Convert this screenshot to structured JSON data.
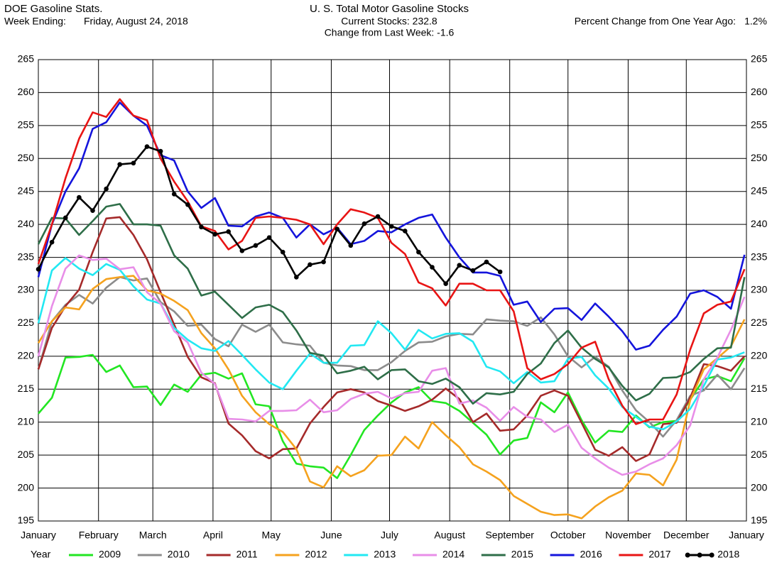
{
  "header": {
    "left_title": "DOE Gasoline Stats.",
    "week_label": "Week Ending:",
    "week_value": "Friday, August 24, 2018",
    "pct_label": "Percent Change from One Year Ago:",
    "pct_value": "1.2%"
  },
  "chart_data": {
    "type": "line",
    "title": "U. S. Total Motor Gasoline Stocks",
    "subtitle": [
      "Current Stocks: 232.8",
      "Change from Last Week: -1.6"
    ],
    "legend_title": "Year",
    "grid": true,
    "x": [
      0,
      1,
      2,
      3,
      4,
      5,
      6,
      7,
      8,
      9,
      10,
      11,
      12,
      13,
      14,
      15,
      16,
      17,
      18,
      19,
      20,
      21,
      22,
      23,
      24,
      25,
      26,
      27,
      28,
      29,
      30,
      31,
      32,
      33,
      34,
      35,
      36,
      37,
      38,
      39,
      40,
      41,
      42,
      43,
      44,
      45,
      46,
      47,
      48,
      49,
      50,
      51,
      52
    ],
    "xlim": [
      0,
      52.14
    ],
    "xticks": [
      {
        "value": 0,
        "label": "January"
      },
      {
        "value": 4.43,
        "label": "February"
      },
      {
        "value": 8.43,
        "label": "March"
      },
      {
        "value": 12.86,
        "label": "April"
      },
      {
        "value": 17.14,
        "label": "May"
      },
      {
        "value": 21.57,
        "label": "June"
      },
      {
        "value": 25.86,
        "label": "July"
      },
      {
        "value": 30.29,
        "label": "August"
      },
      {
        "value": 34.71,
        "label": "September"
      },
      {
        "value": 39,
        "label": "October"
      },
      {
        "value": 43.43,
        "label": "November"
      },
      {
        "value": 47.71,
        "label": "December"
      },
      {
        "value": 52.14,
        "label": "January"
      }
    ],
    "ylim": [
      195,
      265
    ],
    "yticks": [
      195,
      200,
      205,
      210,
      215,
      220,
      225,
      230,
      235,
      240,
      245,
      250,
      255,
      260,
      265
    ],
    "series": [
      {
        "name": "2009",
        "color": "#22e622",
        "values": [
          211.3,
          213.7,
          219.8,
          219.9,
          220.2,
          217.6,
          218.6,
          215.3,
          215.4,
          212.6,
          215.7,
          214.6,
          217.2,
          217.5,
          216.6,
          217.4,
          212.7,
          212.4,
          207.1,
          203.7,
          203.3,
          203.1,
          201.5,
          205,
          208.8,
          211,
          213,
          214.5,
          215.3,
          213.2,
          212.9,
          211.7,
          209.9,
          208.1,
          205.1,
          207.2,
          207.6,
          213,
          211.5,
          214.5,
          210.3,
          206.9,
          208.7,
          208.5,
          211,
          209.2,
          210,
          210.2,
          213.4,
          216.5,
          217,
          216.2,
          219.7
        ]
      },
      {
        "name": "2010",
        "color": "#8c8c8c",
        "values": [
          218,
          225.3,
          227.8,
          229.3,
          228,
          230.4,
          232,
          231.5,
          231.8,
          228.2,
          226.8,
          224.6,
          224.8,
          222.6,
          221.5,
          224.8,
          223.7,
          224.8,
          222.1,
          221.8,
          221.6,
          219,
          218.6,
          218.5,
          217.9,
          217.9,
          219.1,
          220.8,
          222.1,
          222.2,
          223,
          223.4,
          223.3,
          225.6,
          225.4,
          225.3,
          224.6,
          225.9,
          223.3,
          220,
          218.3,
          219.9,
          218.4,
          214.8,
          211.8,
          210,
          207.8,
          210.3,
          214,
          214.8,
          217.2,
          215,
          218.2
        ]
      },
      {
        "name": "2011",
        "color": "#a52a2a",
        "values": [
          218,
          224.3,
          227.6,
          230.1,
          235.8,
          240.9,
          241.1,
          238.4,
          234.7,
          229.7,
          224.8,
          219.9,
          216.8,
          215.9,
          209.8,
          208,
          205.6,
          204.5,
          205.9,
          206,
          209.8,
          212.3,
          214.5,
          215,
          214.5,
          213.2,
          212.5,
          211.7,
          212.4,
          213.4,
          215.1,
          213.5,
          210,
          211.3,
          208.7,
          208.9,
          211,
          214,
          214.8,
          214,
          209.9,
          205.8,
          204.9,
          206.2,
          204.1,
          205.1,
          209.7,
          209.9,
          213.7,
          218.8,
          218.5,
          217.8,
          220
        ]
      },
      {
        "name": "2012",
        "color": "#f5a21e",
        "values": [
          222,
          225.3,
          227.4,
          227.1,
          230.2,
          231.7,
          232,
          232.2,
          230,
          229.5,
          228.4,
          227,
          223.5,
          221.2,
          218,
          214,
          211.5,
          209.7,
          208.5,
          205.9,
          201,
          200.1,
          203.3,
          201.8,
          202.7,
          204.9,
          205,
          207.8,
          206,
          210,
          208,
          206.2,
          203.6,
          202.5,
          201.2,
          198.8,
          197.6,
          196.4,
          195.9,
          196,
          195.4,
          197.2,
          198.6,
          199.6,
          202.2,
          202,
          200.4,
          204.3,
          213.3,
          218,
          219.7,
          221.5,
          225.6
        ]
      },
      {
        "name": "2013",
        "color": "#22e8f2",
        "values": [
          225,
          233,
          234.9,
          233.3,
          232.3,
          234,
          233.1,
          230.6,
          228.6,
          228,
          224.3,
          222.5,
          221.2,
          220.8,
          222.3,
          220.2,
          218,
          216,
          215,
          217.8,
          220.4,
          219,
          219,
          221.6,
          221.7,
          225.3,
          223.5,
          221,
          224,
          222.7,
          223.4,
          223.5,
          222.2,
          218.4,
          217.7,
          215.9,
          217.6,
          216,
          216.2,
          219.6,
          219.9,
          217.1,
          215.1,
          212.3,
          210.8,
          209.3,
          208.9,
          210.1,
          212,
          215.5,
          219.5,
          219.8,
          220.6
        ]
      },
      {
        "name": "2014",
        "color": "#e88ee8",
        "values": [
          220,
          227.6,
          233.3,
          235.3,
          234.6,
          234.8,
          233.2,
          233.5,
          229.7,
          228,
          223.8,
          222.1,
          217.5,
          215.8,
          210.5,
          210.4,
          210.1,
          211.7,
          211.7,
          211.8,
          213.4,
          211.5,
          211.8,
          213.5,
          214.3,
          214.6,
          213.6,
          214.4,
          214.6,
          217.8,
          218.2,
          212.8,
          213.3,
          212.2,
          210.2,
          212.3,
          210.8,
          210.4,
          208.5,
          209.6,
          206.1,
          204.5,
          203.1,
          202,
          202.5,
          203.6,
          204.5,
          206.5,
          209.5,
          216.5,
          219.8,
          224,
          229
        ]
      },
      {
        "name": "2015",
        "color": "#2e6e48",
        "values": [
          237,
          241,
          240.9,
          238.4,
          240.5,
          242.7,
          243.1,
          240,
          240,
          239.8,
          235.3,
          233.3,
          229.2,
          229.8,
          227.8,
          225.8,
          227.4,
          227.8,
          226.7,
          223.9,
          220.5,
          220.1,
          217.4,
          217.8,
          218.4,
          216.5,
          217.9,
          218,
          216.2,
          215.8,
          216.6,
          215.3,
          212.8,
          214.4,
          214.2,
          214.6,
          217.3,
          218.9,
          222,
          223.9,
          221.3,
          219.6,
          218.3,
          215.5,
          213.3,
          214.3,
          216.7,
          216.8,
          217.6,
          219.6,
          221.2,
          221.3,
          232
        ]
      },
      {
        "name": "2016",
        "color": "#1414dc",
        "values": [
          232,
          240,
          245,
          248.5,
          254.5,
          255.5,
          258.5,
          256.5,
          255,
          250.5,
          249.7,
          245,
          242.5,
          244,
          239.8,
          239.7,
          241.2,
          241.8,
          241,
          238,
          240,
          238.5,
          239.5,
          237,
          237.5,
          239,
          238.8,
          240,
          241,
          241.5,
          238,
          235,
          232.7,
          232.7,
          232.2,
          227.8,
          228.3,
          225.2,
          227.2,
          227.3,
          225.5,
          228,
          226,
          223.8,
          221,
          221.6,
          224,
          226,
          229.5,
          230,
          229,
          227.2,
          235.4
        ]
      },
      {
        "name": "2017",
        "color": "#e81414",
        "values": [
          234,
          240,
          247,
          253,
          257,
          256.3,
          259,
          256.5,
          255.8,
          250,
          246.5,
          243.5,
          239.7,
          239,
          236.2,
          237.5,
          241,
          241.2,
          241,
          240.7,
          240,
          237,
          240,
          242.3,
          241.8,
          241,
          237.2,
          235.5,
          231.2,
          230.3,
          227.7,
          231,
          231,
          230,
          230,
          226.8,
          218.2,
          216.5,
          217.3,
          218.8,
          221.3,
          222.2,
          216.5,
          212.5,
          209.7,
          210.4,
          210.4,
          214.2,
          221,
          226.5,
          227.8,
          228.3,
          233.2
        ]
      },
      {
        "name": "2018",
        "color": "#000000",
        "marker": "circle",
        "values": [
          233.2,
          237.3,
          241,
          244.1,
          242.1,
          245.4,
          249.1,
          249.3,
          251.8,
          251.1,
          244.6,
          243,
          239.6,
          238.5,
          238.9,
          236,
          236.8,
          238,
          235.8,
          232,
          233.9,
          234.3,
          239.3,
          236.8,
          240.1,
          241.2,
          239.7,
          239,
          235.8,
          233.5,
          231,
          233.8,
          233,
          234.3,
          232.8,
          null,
          null,
          null,
          null,
          null,
          null,
          null,
          null,
          null,
          null,
          null,
          null,
          null,
          null,
          null,
          null,
          null,
          null
        ]
      }
    ]
  }
}
